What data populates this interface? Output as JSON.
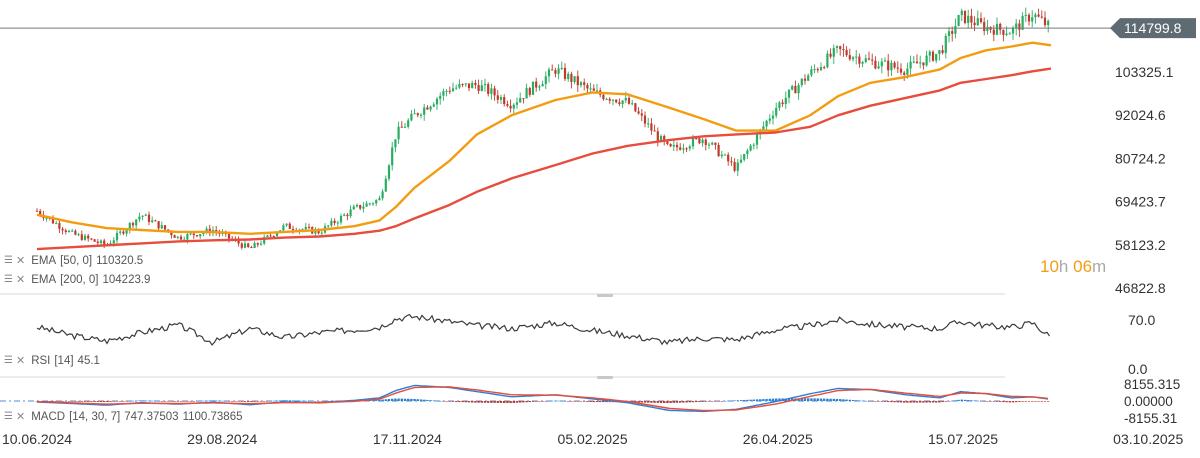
{
  "chart_data": {
    "type": "candlestick",
    "instrument_last_price": "114799.8",
    "price_axis": {
      "ticks": [
        "103325.1",
        "92024.6",
        "80724.2",
        "69423.7",
        "58123.2",
        "46822.8"
      ],
      "range": [
        46822.8,
        120000
      ]
    },
    "date_axis": {
      "ticks": [
        "10.06.2024",
        "29.08.2024",
        "17.11.2024",
        "05.02.2025",
        "26.04.2025",
        "15.07.2025",
        "03.10.2025"
      ],
      "range": [
        "2024-06-10",
        "2025-10-03"
      ]
    },
    "price_series": {
      "dates": [
        "2024-06-10",
        "2024-06-25",
        "2024-07-10",
        "2024-07-25",
        "2024-08-10",
        "2024-08-25",
        "2024-09-10",
        "2024-09-25",
        "2024-10-10",
        "2024-10-25",
        "2024-11-05",
        "2024-11-12",
        "2024-11-20",
        "2024-12-05",
        "2024-12-17",
        "2025-01-01",
        "2025-01-20",
        "2025-02-05",
        "2025-02-20",
        "2025-03-10",
        "2025-03-25",
        "2025-04-08",
        "2025-04-25",
        "2025-05-10",
        "2025-05-22",
        "2025-06-05",
        "2025-06-20",
        "2025-07-05",
        "2025-07-14",
        "2025-07-25",
        "2025-08-05",
        "2025-08-14",
        "2025-08-22"
      ],
      "close": [
        67000,
        61000,
        58000,
        66000,
        60000,
        62000,
        57000,
        63000,
        61500,
        67500,
        70000,
        87000,
        92000,
        99000,
        100000,
        95000,
        104000,
        98000,
        95500,
        83000,
        86000,
        78000,
        94000,
        103000,
        109000,
        106000,
        104000,
        108500,
        118000,
        115000,
        114000,
        118500,
        114799.8
      ]
    },
    "indicators": [
      {
        "name": "EMA",
        "params": "[50, 0]",
        "value": "110320.5",
        "color": "#f39c12",
        "values": [
          66000,
          64000,
          62500,
          62000,
          61500,
          61500,
          61000,
          61500,
          62000,
          63000,
          64500,
          68000,
          73000,
          80000,
          87000,
          92000,
          96000,
          98000,
          97500,
          94000,
          91000,
          88000,
          88000,
          92000,
          97000,
          100500,
          102000,
          104000,
          107000,
          109000,
          110000,
          111000,
          110320.5
        ]
      },
      {
        "name": "EMA",
        "params": "[200, 0]",
        "value": "104223.9",
        "color": "#e74c3c",
        "values": [
          57000,
          57500,
          58000,
          58500,
          59000,
          59300,
          59500,
          60000,
          60300,
          61000,
          61800,
          63000,
          65000,
          68500,
          72000,
          75500,
          79000,
          82000,
          84000,
          85500,
          86500,
          87000,
          87500,
          89000,
          92000,
          94500,
          96500,
          98500,
          100500,
          101500,
          102500,
          103500,
          104223.9
        ]
      }
    ],
    "rsi": {
      "name": "RSI",
      "params": "[14]",
      "value": "45.1",
      "ticks": [
        "70.0",
        "0.0"
      ],
      "values": [
        60,
        48,
        40,
        52,
        63,
        38,
        58,
        45,
        52,
        56,
        60,
        72,
        75,
        68,
        62,
        58,
        66,
        55,
        48,
        38,
        44,
        42,
        56,
        62,
        70,
        64,
        60,
        58,
        68,
        62,
        60,
        66,
        45.1
      ]
    },
    "macd": {
      "name": "MACD",
      "params": "[14, 30, 7]",
      "value1": "747.37503",
      "value2": "1100.73865",
      "ticks": [
        "8155.315",
        "0.00000",
        "-8155.31"
      ],
      "macd_line": [
        -500,
        -1200,
        -2000,
        -800,
        -1500,
        -600,
        -1800,
        -400,
        -900,
        300,
        1500,
        5000,
        7500,
        6500,
        4500,
        2000,
        3000,
        1000,
        -800,
        -4500,
        -5000,
        -4000,
        -300,
        3500,
        6000,
        5500,
        3000,
        1500,
        4500,
        3500,
        1500,
        2000,
        747.37503
      ],
      "signal_line": [
        -300,
        -900,
        -1500,
        -1100,
        -1200,
        -900,
        -1300,
        -800,
        -800,
        -200,
        900,
        3800,
        6500,
        6800,
        5300,
        3000,
        2800,
        1500,
        -200,
        -3500,
        -4600,
        -4300,
        -1500,
        2200,
        5000,
        5600,
        3800,
        2200,
        3800,
        3600,
        2200,
        2000,
        1100.73865
      ]
    },
    "countdown": {
      "hours": "10",
      "h_unit": "h",
      "minutes": "06",
      "m_unit": "m"
    }
  }
}
